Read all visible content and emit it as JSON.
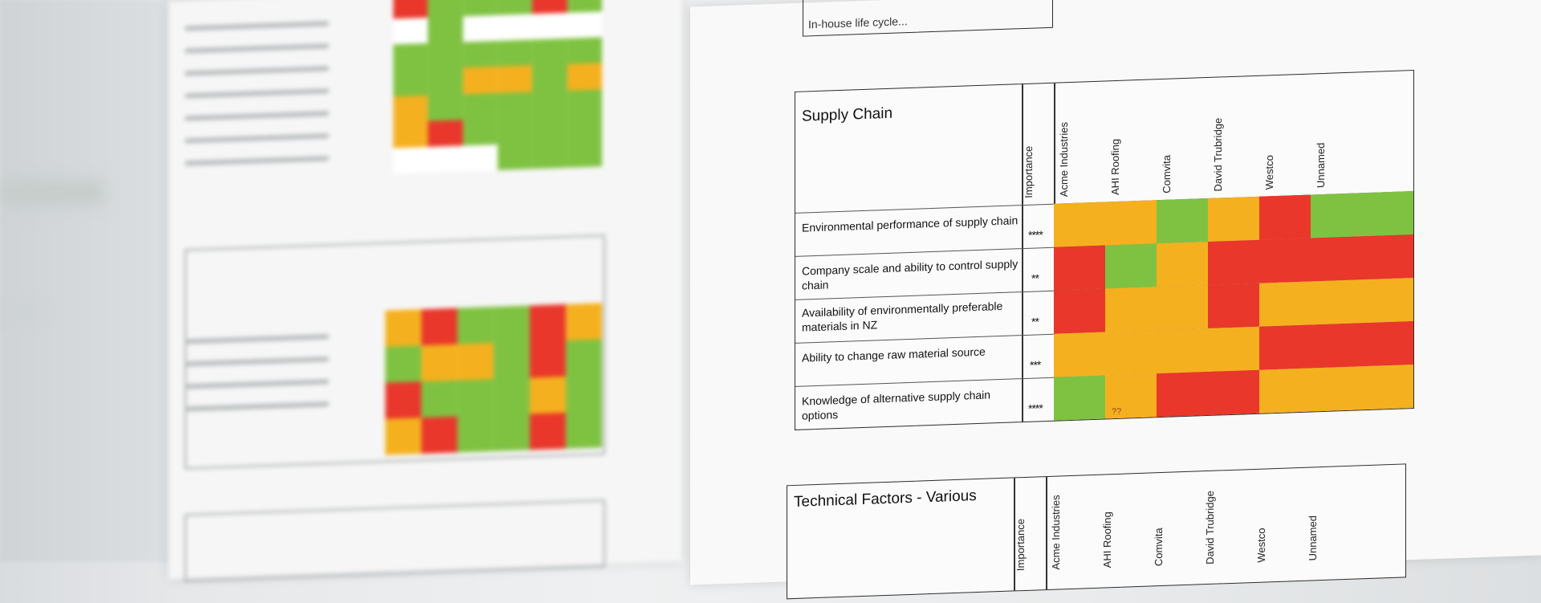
{
  "supply_chain": {
    "title": "Supply Chain",
    "columns": [
      "Importance",
      "Acme Industries",
      "AHI Roofing",
      "Comvita",
      "David Trubridge",
      "Westco",
      "Unnamed"
    ],
    "rows": [
      {
        "label": "Environmental performance of supply chain",
        "importance": "****"
      },
      {
        "label": "Company scale and ability to control supply chain",
        "importance": "**"
      },
      {
        "label": "Availability of environmentally preferable materials in NZ",
        "importance": "**"
      },
      {
        "label": "Ability to change raw material source",
        "importance": "***"
      },
      {
        "label": "Knowledge of alternative supply chain options",
        "importance": "****"
      }
    ],
    "cell_colors": [
      [
        "orange",
        "orange",
        "green",
        "orange",
        "red",
        "green",
        "green"
      ],
      [
        "red",
        "green",
        "orange",
        "red",
        "red",
        "red",
        "red"
      ],
      [
        "red",
        "orange",
        "orange",
        "red",
        "orange",
        "orange",
        "orange"
      ],
      [
        "orange",
        "orange",
        "orange",
        "orange",
        "red",
        "red",
        "red"
      ],
      [
        "green",
        "orange",
        "red",
        "red",
        "orange",
        "orange",
        "orange"
      ]
    ],
    "notes": {
      "r0c6": "",
      "r3c6": "",
      "r4c1": "??"
    }
  },
  "technical_factors": {
    "title": "Technical Factors - Various",
    "columns": [
      "Importance",
      "Acme Industries",
      "AHI Roofing",
      "Comvita",
      "David Trubridge",
      "Westco",
      "Unnamed"
    ]
  },
  "top_partial_label": "In-house life cycle...",
  "colors": {
    "green": "#7fc241",
    "orange": "#f5b01f",
    "red": "#e9372b"
  }
}
